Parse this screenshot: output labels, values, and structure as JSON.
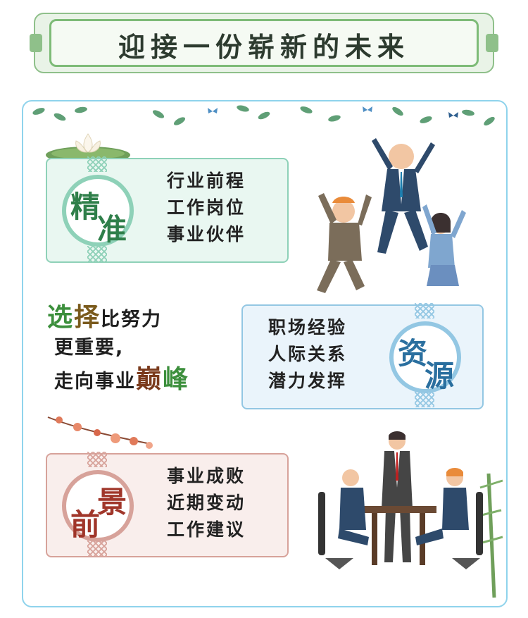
{
  "header": {
    "title": "迎接一份崭新的未来"
  },
  "cards": {
    "jingzhun": {
      "badge": [
        "精",
        "准"
      ],
      "lines": [
        "行业前程",
        "工作岗位",
        "事业伙伴"
      ]
    },
    "ziyuan": {
      "badge": [
        "资",
        "源"
      ],
      "lines": [
        "职场经验",
        "人际关系",
        "潜力发挥"
      ]
    },
    "qianjing": {
      "badge": [
        "前",
        "景"
      ],
      "lines": [
        "事业成败",
        "近期变动",
        "工作建议"
      ]
    }
  },
  "slogan": {
    "line1_a": "选",
    "line1_b": "择",
    "line1_c": "比努力",
    "line2": "更重要,",
    "line3_a": "走向事业",
    "line3_b": "巅",
    "line3_c": "峰"
  },
  "colors": {
    "green": "#7dbb77",
    "teal": "#8ed1b8",
    "blue": "#93c7e3",
    "rose": "#d7a29a",
    "frame": "#8fd3ec"
  }
}
